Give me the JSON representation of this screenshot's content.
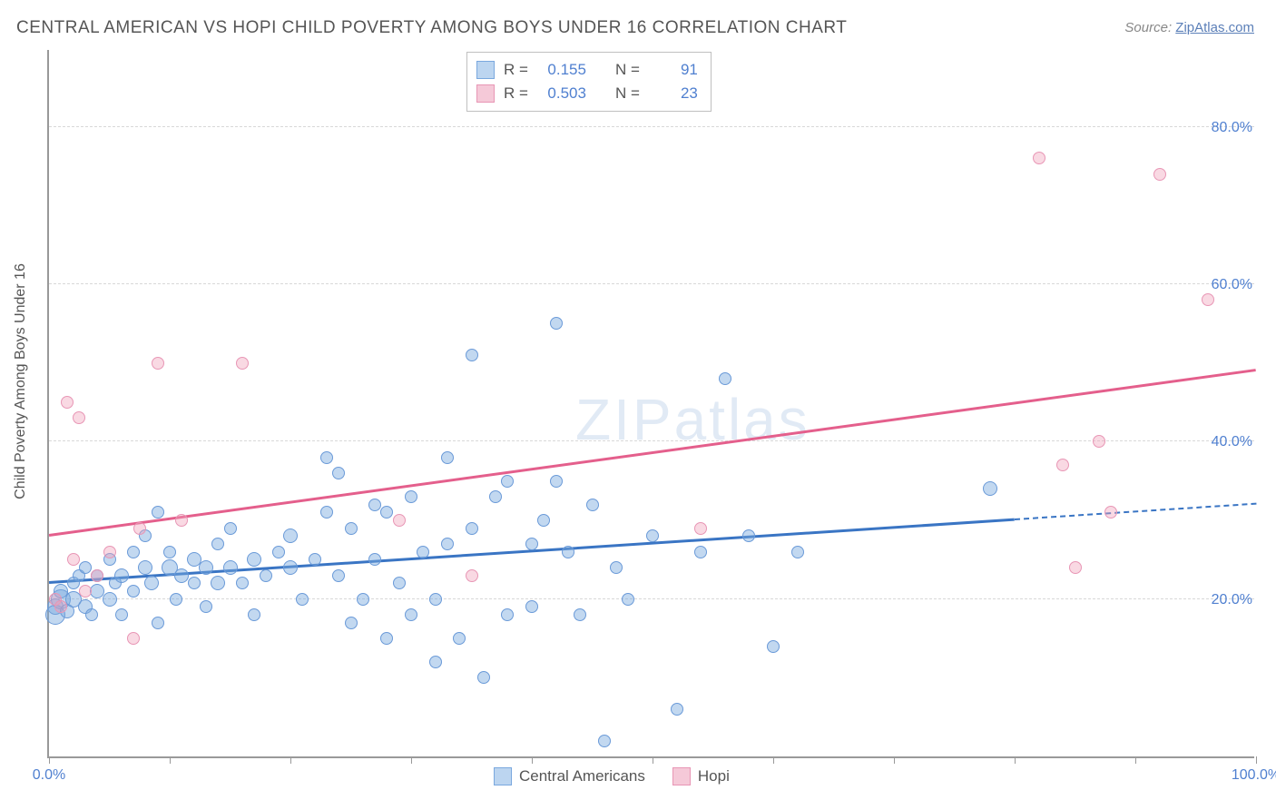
{
  "title": "CENTRAL AMERICAN VS HOPI CHILD POVERTY AMONG BOYS UNDER 16 CORRELATION CHART",
  "source_label": "Source: ",
  "source_link": "ZipAtlas.com",
  "y_axis_label": "Child Poverty Among Boys Under 16",
  "watermark": "ZIPatlas",
  "chart": {
    "type": "scatter",
    "xlim": [
      0,
      100
    ],
    "ylim": [
      0,
      90
    ],
    "x_ticks_minor": [
      0,
      10,
      20,
      30,
      40,
      50,
      60,
      70,
      80,
      90,
      100
    ],
    "x_tick_labels": [
      {
        "pos": 0,
        "label": "0.0%"
      },
      {
        "pos": 100,
        "label": "100.0%"
      }
    ],
    "y_gridlines": [
      20,
      40,
      60,
      80
    ],
    "y_tick_labels": [
      {
        "pos": 20,
        "label": "20.0%"
      },
      {
        "pos": 40,
        "label": "40.0%"
      },
      {
        "pos": 60,
        "label": "60.0%"
      },
      {
        "pos": 80,
        "label": "80.0%"
      }
    ],
    "background_color": "#ffffff",
    "grid_color": "#d8d8d8",
    "series": [
      {
        "name": "Central Americans",
        "color_fill": "rgba(120,168,222,0.45)",
        "color_stroke": "#6a9ad8",
        "swatch_fill": "#bcd5f0",
        "swatch_border": "#7aa8de",
        "R_label": "R =",
        "R": "0.155",
        "N_label": "N =",
        "N": "91",
        "trend_color": "#3a75c4",
        "trend": {
          "x1": 0,
          "y1": 22,
          "x2": 80,
          "y2": 30,
          "x2_dash": 100,
          "y2_dash": 32
        },
        "points": [
          {
            "x": 0.5,
            "y": 19,
            "r": 9
          },
          {
            "x": 0.5,
            "y": 18,
            "r": 11
          },
          {
            "x": 1,
            "y": 20,
            "r": 11
          },
          {
            "x": 1,
            "y": 21,
            "r": 8
          },
          {
            "x": 1.5,
            "y": 18.5,
            "r": 8
          },
          {
            "x": 2,
            "y": 22,
            "r": 7
          },
          {
            "x": 2,
            "y": 20,
            "r": 9
          },
          {
            "x": 2.5,
            "y": 23,
            "r": 7
          },
          {
            "x": 3,
            "y": 19,
            "r": 8
          },
          {
            "x": 3,
            "y": 24,
            "r": 7
          },
          {
            "x": 3.5,
            "y": 18,
            "r": 7
          },
          {
            "x": 4,
            "y": 21,
            "r": 8
          },
          {
            "x": 4,
            "y": 23,
            "r": 7
          },
          {
            "x": 5,
            "y": 20,
            "r": 8
          },
          {
            "x": 5,
            "y": 25,
            "r": 7
          },
          {
            "x": 5.5,
            "y": 22,
            "r": 7
          },
          {
            "x": 6,
            "y": 23,
            "r": 8
          },
          {
            "x": 6,
            "y": 18,
            "r": 7
          },
          {
            "x": 7,
            "y": 26,
            "r": 7
          },
          {
            "x": 7,
            "y": 21,
            "r": 7
          },
          {
            "x": 8,
            "y": 24,
            "r": 8
          },
          {
            "x": 8,
            "y": 28,
            "r": 7
          },
          {
            "x": 8.5,
            "y": 22,
            "r": 8
          },
          {
            "x": 9,
            "y": 31,
            "r": 7
          },
          {
            "x": 9,
            "y": 17,
            "r": 7
          },
          {
            "x": 10,
            "y": 24,
            "r": 9
          },
          {
            "x": 10,
            "y": 26,
            "r": 7
          },
          {
            "x": 10.5,
            "y": 20,
            "r": 7
          },
          {
            "x": 11,
            "y": 23,
            "r": 8
          },
          {
            "x": 12,
            "y": 22,
            "r": 7
          },
          {
            "x": 12,
            "y": 25,
            "r": 8
          },
          {
            "x": 13,
            "y": 24,
            "r": 8
          },
          {
            "x": 13,
            "y": 19,
            "r": 7
          },
          {
            "x": 14,
            "y": 27,
            "r": 7
          },
          {
            "x": 14,
            "y": 22,
            "r": 8
          },
          {
            "x": 15,
            "y": 24,
            "r": 8
          },
          {
            "x": 15,
            "y": 29,
            "r": 7
          },
          {
            "x": 16,
            "y": 22,
            "r": 7
          },
          {
            "x": 17,
            "y": 25,
            "r": 8
          },
          {
            "x": 17,
            "y": 18,
            "r": 7
          },
          {
            "x": 18,
            "y": 23,
            "r": 7
          },
          {
            "x": 19,
            "y": 26,
            "r": 7
          },
          {
            "x": 20,
            "y": 24,
            "r": 8
          },
          {
            "x": 20,
            "y": 28,
            "r": 8
          },
          {
            "x": 21,
            "y": 20,
            "r": 7
          },
          {
            "x": 22,
            "y": 25,
            "r": 7
          },
          {
            "x": 23,
            "y": 31,
            "r": 7
          },
          {
            "x": 23,
            "y": 38,
            "r": 7
          },
          {
            "x": 24,
            "y": 23,
            "r": 7
          },
          {
            "x": 24,
            "y": 36,
            "r": 7
          },
          {
            "x": 25,
            "y": 17,
            "r": 7
          },
          {
            "x": 25,
            "y": 29,
            "r": 7
          },
          {
            "x": 26,
            "y": 20,
            "r": 7
          },
          {
            "x": 27,
            "y": 32,
            "r": 7
          },
          {
            "x": 27,
            "y": 25,
            "r": 7
          },
          {
            "x": 28,
            "y": 15,
            "r": 7
          },
          {
            "x": 28,
            "y": 31,
            "r": 7
          },
          {
            "x": 29,
            "y": 22,
            "r": 7
          },
          {
            "x": 30,
            "y": 33,
            "r": 7
          },
          {
            "x": 30,
            "y": 18,
            "r": 7
          },
          {
            "x": 31,
            "y": 26,
            "r": 7
          },
          {
            "x": 32,
            "y": 20,
            "r": 7
          },
          {
            "x": 32,
            "y": 12,
            "r": 7
          },
          {
            "x": 33,
            "y": 27,
            "r": 7
          },
          {
            "x": 33,
            "y": 38,
            "r": 7
          },
          {
            "x": 34,
            "y": 15,
            "r": 7
          },
          {
            "x": 35,
            "y": 29,
            "r": 7
          },
          {
            "x": 35,
            "y": 51,
            "r": 7
          },
          {
            "x": 36,
            "y": 10,
            "r": 7
          },
          {
            "x": 37,
            "y": 33,
            "r": 7
          },
          {
            "x": 38,
            "y": 18,
            "r": 7
          },
          {
            "x": 38,
            "y": 35,
            "r": 7
          },
          {
            "x": 40,
            "y": 27,
            "r": 7
          },
          {
            "x": 40,
            "y": 19,
            "r": 7
          },
          {
            "x": 41,
            "y": 30,
            "r": 7
          },
          {
            "x": 42,
            "y": 55,
            "r": 7
          },
          {
            "x": 42,
            "y": 35,
            "r": 7
          },
          {
            "x": 43,
            "y": 26,
            "r": 7
          },
          {
            "x": 44,
            "y": 18,
            "r": 7
          },
          {
            "x": 45,
            "y": 32,
            "r": 7
          },
          {
            "x": 46,
            "y": 2,
            "r": 7
          },
          {
            "x": 47,
            "y": 24,
            "r": 7
          },
          {
            "x": 48,
            "y": 20,
            "r": 7
          },
          {
            "x": 50,
            "y": 28,
            "r": 7
          },
          {
            "x": 52,
            "y": 6,
            "r": 7
          },
          {
            "x": 54,
            "y": 26,
            "r": 7
          },
          {
            "x": 56,
            "y": 48,
            "r": 7
          },
          {
            "x": 58,
            "y": 28,
            "r": 7
          },
          {
            "x": 60,
            "y": 14,
            "r": 7
          },
          {
            "x": 62,
            "y": 26,
            "r": 7
          },
          {
            "x": 78,
            "y": 34,
            "r": 8
          }
        ]
      },
      {
        "name": "Hopi",
        "color_fill": "rgba(240,160,185,0.40)",
        "color_stroke": "#e896b5",
        "swatch_fill": "#f5c9d8",
        "swatch_border": "#e896b5",
        "R_label": "R =",
        "R": "0.503",
        "N_label": "N =",
        "N": "23",
        "trend_color": "#e45f8c",
        "trend": {
          "x1": 0,
          "y1": 28,
          "x2": 100,
          "y2": 49
        },
        "points": [
          {
            "x": 0.5,
            "y": 20,
            "r": 7
          },
          {
            "x": 1,
            "y": 19,
            "r": 7
          },
          {
            "x": 1.5,
            "y": 45,
            "r": 7
          },
          {
            "x": 2,
            "y": 25,
            "r": 7
          },
          {
            "x": 2.5,
            "y": 43,
            "r": 7
          },
          {
            "x": 3,
            "y": 21,
            "r": 7
          },
          {
            "x": 4,
            "y": 23,
            "r": 7
          },
          {
            "x": 5,
            "y": 26,
            "r": 7
          },
          {
            "x": 7,
            "y": 15,
            "r": 7
          },
          {
            "x": 7.5,
            "y": 29,
            "r": 7
          },
          {
            "x": 9,
            "y": 50,
            "r": 7
          },
          {
            "x": 11,
            "y": 30,
            "r": 7
          },
          {
            "x": 16,
            "y": 50,
            "r": 7
          },
          {
            "x": 29,
            "y": 30,
            "r": 7
          },
          {
            "x": 35,
            "y": 23,
            "r": 7
          },
          {
            "x": 54,
            "y": 29,
            "r": 7
          },
          {
            "x": 82,
            "y": 76,
            "r": 7
          },
          {
            "x": 84,
            "y": 37,
            "r": 7
          },
          {
            "x": 85,
            "y": 24,
            "r": 7
          },
          {
            "x": 87,
            "y": 40,
            "r": 7
          },
          {
            "x": 88,
            "y": 31,
            "r": 7
          },
          {
            "x": 92,
            "y": 74,
            "r": 7
          },
          {
            "x": 96,
            "y": 58,
            "r": 7
          }
        ]
      }
    ]
  }
}
